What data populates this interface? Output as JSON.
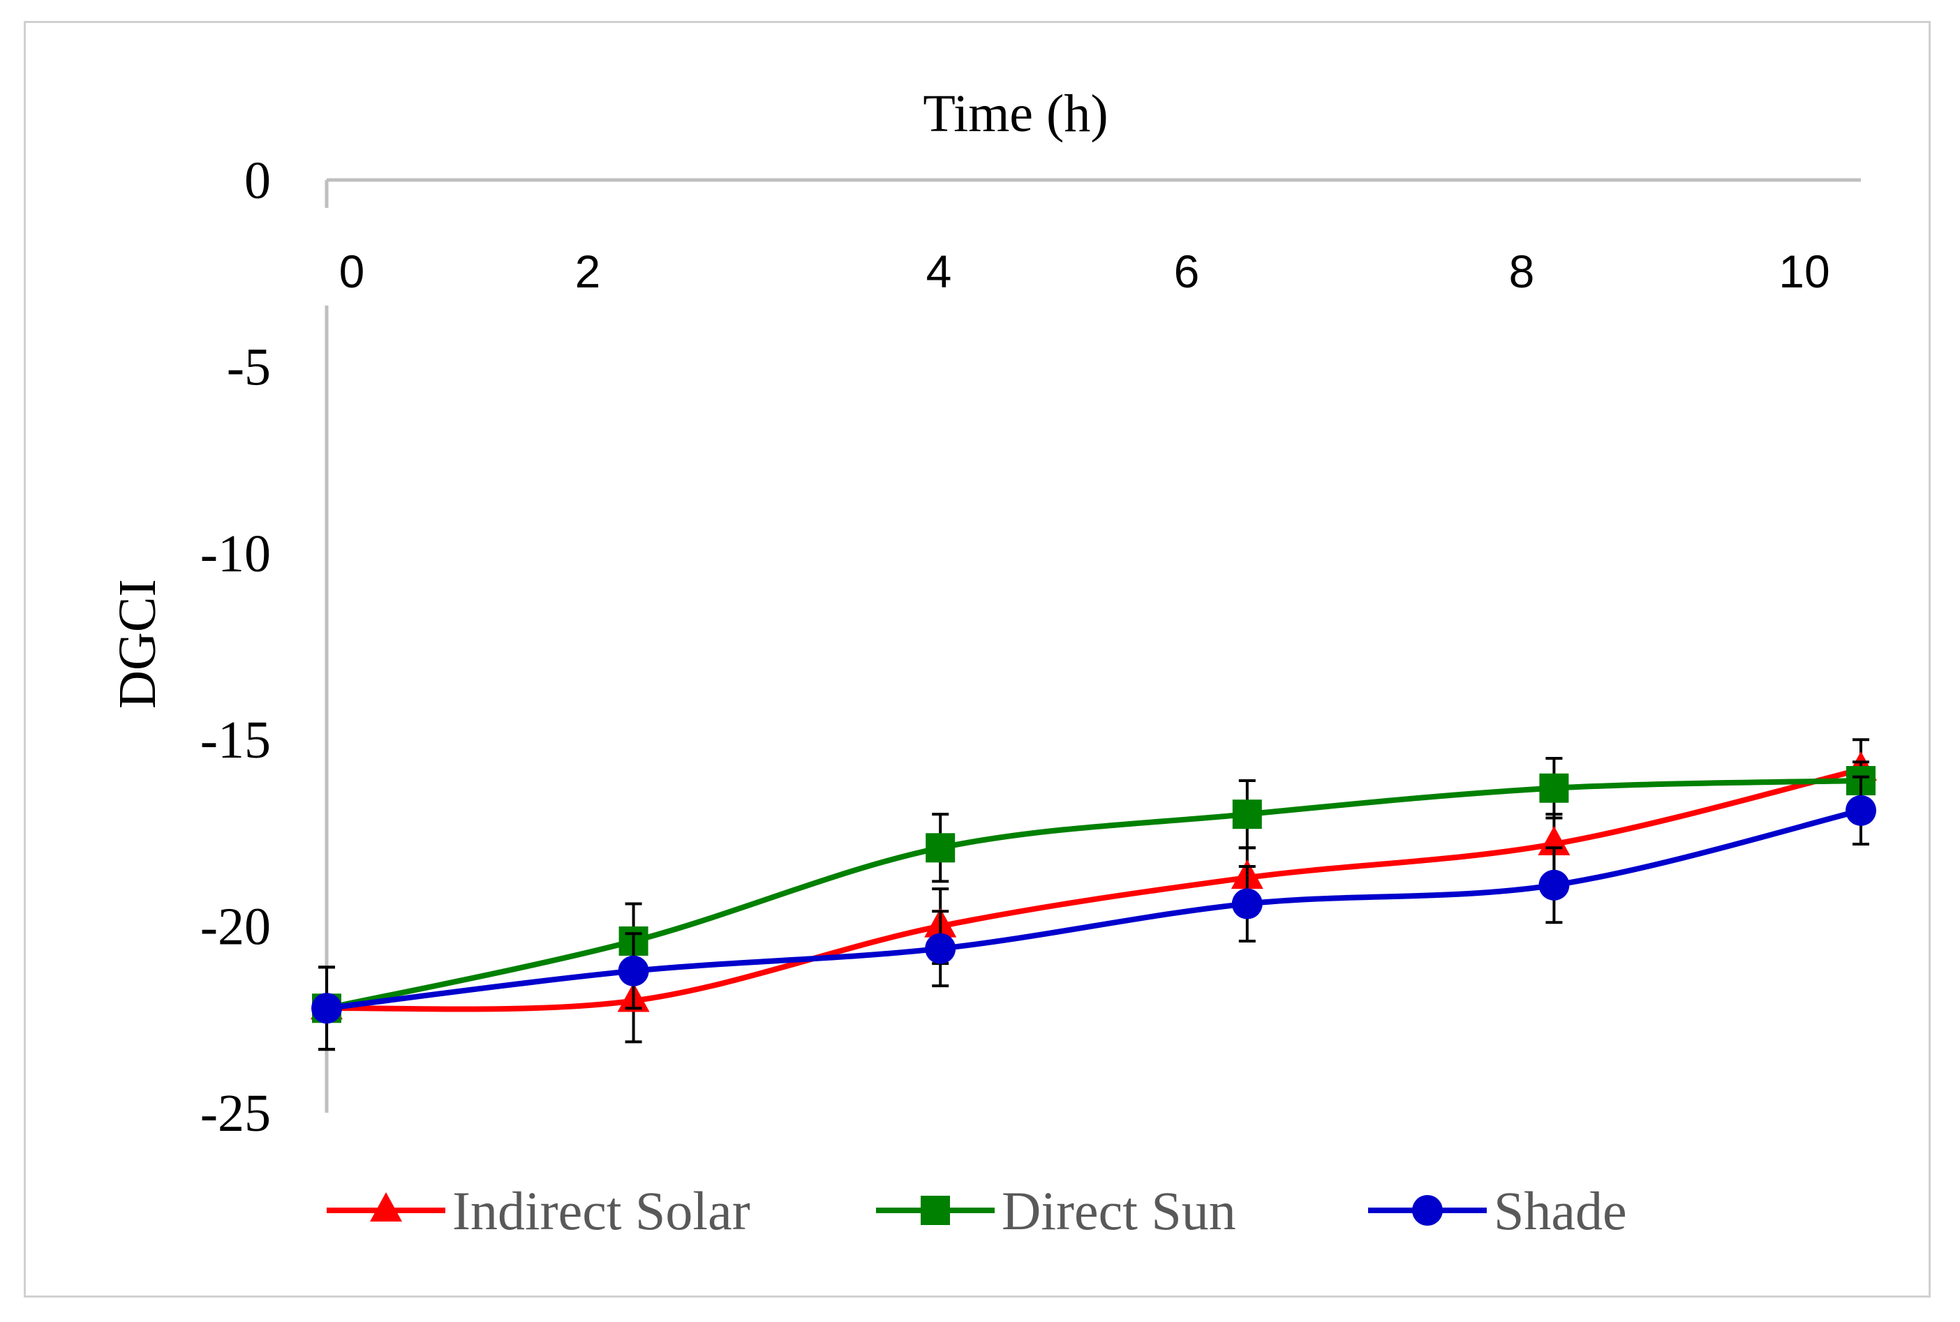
{
  "chart_data": {
    "type": "line",
    "title": "",
    "xlabel": "Time (h)",
    "ylabel": "DGCI",
    "xlim": [
      0,
      10
    ],
    "ylim": [
      -25,
      0
    ],
    "x_ticks": [
      "0",
      "2",
      "4",
      "6",
      "8",
      "10"
    ],
    "y_ticks": [
      "0",
      "-5",
      "-10",
      "-15",
      "-20",
      "-25"
    ],
    "x_axis_position": "top",
    "legend_position": "bottom",
    "grid": false,
    "x": [
      0,
      2,
      4,
      6,
      8,
      10
    ],
    "series": [
      {
        "name": "Indirect Solar",
        "color": "#ff0000",
        "marker": "triangle",
        "values": [
          -22.2,
          -22.0,
          -20.0,
          -18.7,
          -17.8,
          -15.8
        ],
        "errors": [
          1.1,
          1.1,
          1.0,
          0.8,
          0.8,
          0.8
        ]
      },
      {
        "name": "Direct Sun",
        "color": "#008000",
        "marker": "square",
        "values": [
          -22.2,
          -20.4,
          -17.9,
          -17.0,
          -16.3,
          -16.1
        ],
        "errors": [
          1.1,
          1.0,
          0.9,
          0.9,
          0.8,
          0.5
        ]
      },
      {
        "name": "Shade",
        "color": "#0000cc",
        "marker": "circle",
        "values": [
          -22.2,
          -21.2,
          -20.6,
          -19.4,
          -18.9,
          -16.9
        ],
        "errors": [
          1.1,
          1.0,
          1.0,
          1.0,
          1.0,
          0.9
        ]
      }
    ]
  }
}
